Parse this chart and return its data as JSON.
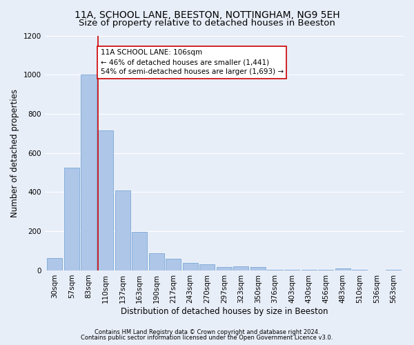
{
  "title1": "11A, SCHOOL LANE, BEESTON, NOTTINGHAM, NG9 5EH",
  "title2": "Size of property relative to detached houses in Beeston",
  "xlabel": "Distribution of detached houses by size in Beeston",
  "ylabel": "Number of detached properties",
  "footnote1": "Contains HM Land Registry data © Crown copyright and database right 2024.",
  "footnote2": "Contains public sector information licensed under the Open Government Licence v3.0.",
  "categories": [
    "30sqm",
    "57sqm",
    "83sqm",
    "110sqm",
    "137sqm",
    "163sqm",
    "190sqm",
    "217sqm",
    "243sqm",
    "270sqm",
    "297sqm",
    "323sqm",
    "350sqm",
    "376sqm",
    "403sqm",
    "430sqm",
    "456sqm",
    "483sqm",
    "510sqm",
    "536sqm",
    "563sqm"
  ],
  "values": [
    65,
    525,
    1000,
    715,
    408,
    198,
    88,
    60,
    38,
    32,
    16,
    20,
    18,
    5,
    5,
    5,
    5,
    10,
    5,
    0,
    5
  ],
  "bar_color": "#aec6e8",
  "bar_edge_color": "#6a9fd0",
  "highlight_bar_index": 3,
  "vline_color": "#cc0000",
  "annotation_text": "11A SCHOOL LANE: 106sqm\n← 46% of detached houses are smaller (1,441)\n54% of semi-detached houses are larger (1,693) →",
  "annotation_box_facecolor": "#ffffff",
  "annotation_box_edgecolor": "#cc0000",
  "ylim": [
    0,
    1200
  ],
  "yticks": [
    0,
    200,
    400,
    600,
    800,
    1000,
    1200
  ],
  "background_color": "#e8eef8",
  "grid_color": "#ffffff",
  "title_fontsize": 10,
  "subtitle_fontsize": 9.5,
  "ylabel_fontsize": 8.5,
  "xlabel_fontsize": 8.5,
  "tick_fontsize": 7.5,
  "annotation_fontsize": 7.5,
  "footnote_fontsize": 6.0
}
